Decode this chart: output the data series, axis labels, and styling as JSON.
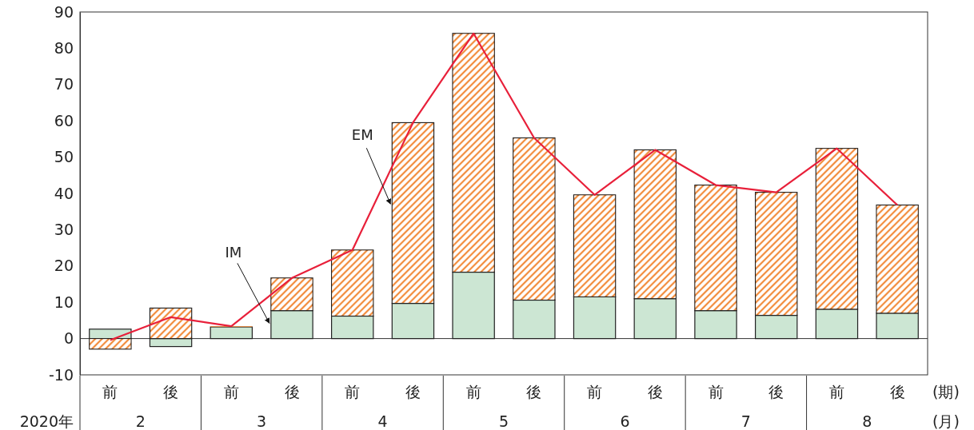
{
  "chart_data": {
    "type": "bar",
    "stacked": true,
    "categories": [
      "前",
      "後",
      "前",
      "後",
      "前",
      "後",
      "前",
      "後",
      "前",
      "後",
      "前",
      "後",
      "前",
      "後"
    ],
    "series": [
      {
        "name": "IM",
        "type": "bar",
        "color": "#cce6d3",
        "values": [
          2.6,
          -2.2,
          3.2,
          7.7,
          6.2,
          9.7,
          18.3,
          10.6,
          11.5,
          11.0,
          7.7,
          6.4,
          8.1,
          7.0
        ]
      },
      {
        "name": "EM",
        "type": "bar",
        "color": "#f28c3c",
        "values": [
          -2.9,
          8.4,
          0.2,
          9.0,
          18.2,
          49.8,
          65.8,
          44.7,
          28.1,
          41.0,
          34.6,
          33.9,
          44.3,
          29.8
        ]
      },
      {
        "type": "line",
        "color": "#e8203a",
        "values": [
          -0.4,
          5.9,
          3.4,
          16.7,
          24.4,
          59.5,
          84.1,
          55.3,
          39.6,
          52.0,
          42.3,
          40.3,
          52.4,
          36.8
        ]
      }
    ],
    "ylim": [
      -10,
      90
    ],
    "yticks": [
      -10,
      0,
      10,
      20,
      30,
      40,
      50,
      60,
      70,
      80,
      90
    ],
    "annotations": [
      "(期)",
      "(月)",
      "2020年",
      "2",
      "3",
      "4",
      "5",
      "6",
      "7",
      "8"
    ]
  }
}
